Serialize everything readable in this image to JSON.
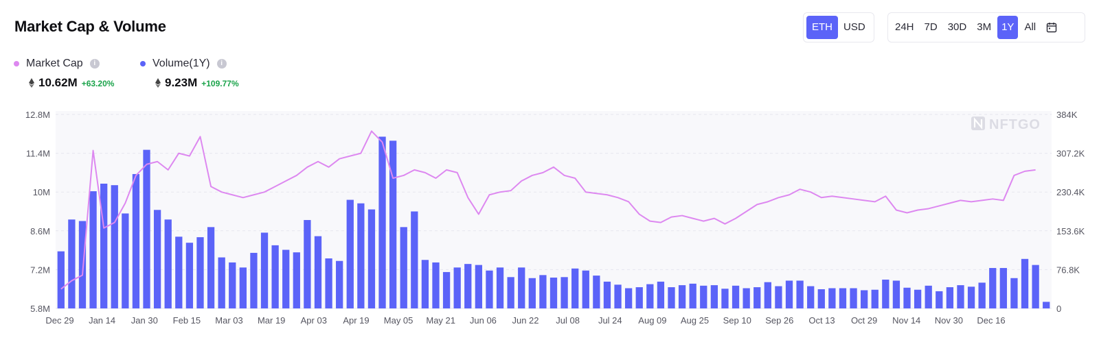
{
  "header": {
    "title": "Market Cap & Volume"
  },
  "currency_toggle": {
    "options": [
      "ETH",
      "USD"
    ],
    "selected": "ETH"
  },
  "range_toggle": {
    "options": [
      "24H",
      "7D",
      "30D",
      "3M",
      "1Y",
      "All"
    ],
    "selected": "1Y",
    "calendar_icon": "calendar-icon"
  },
  "legend": {
    "market_cap": {
      "label": "Market Cap",
      "value": "10.62M",
      "change": "+63.20%",
      "color": "#dd88f0"
    },
    "volume": {
      "label": "Volume(1Y)",
      "value": "9.23M",
      "change": "+109.77%",
      "color": "#5b63f8"
    }
  },
  "watermark": "NFTGO",
  "chart_data": {
    "type": "bar+line",
    "x_tick_labels": [
      "Dec 29",
      "Jan 14",
      "Jan 30",
      "Feb 15",
      "Mar 03",
      "Mar 19",
      "Apr 03",
      "Apr 19",
      "May 05",
      "May 21",
      "Jun 06",
      "Jun 22",
      "Jul 08",
      "Jul 24",
      "Aug 09",
      "Aug 25",
      "Sep 10",
      "Sep 26",
      "Oct 13",
      "Oct 29",
      "Nov 14",
      "Nov 30",
      "Dec 16"
    ],
    "y_left": {
      "ticks": [
        "5.8M",
        "7.2M",
        "8.6M",
        "10M",
        "11.4M",
        "12.8M"
      ],
      "range": [
        5800000,
        12800000
      ]
    },
    "y_right": {
      "ticks": [
        "0",
        "76.8K",
        "153.6K",
        "230.4K",
        "307.2K",
        "384K"
      ],
      "range": [
        0,
        384000
      ]
    },
    "grid": "horizontal",
    "series": [
      {
        "name": "Market Cap",
        "kind": "line",
        "axis": "left",
        "values": [
          6.5,
          6.8,
          7.0,
          11.5,
          8.7,
          8.9,
          9.6,
          10.6,
          11.0,
          11.1,
          10.8,
          11.4,
          11.3,
          12.0,
          10.2,
          10.0,
          9.9,
          9.8,
          9.9,
          10.0,
          10.2,
          10.4,
          10.6,
          10.9,
          11.1,
          10.9,
          11.2,
          11.3,
          11.4,
          12.2,
          11.8,
          10.5,
          10.6,
          10.8,
          10.7,
          10.5,
          10.8,
          10.7,
          9.8,
          9.2,
          9.9,
          10.0,
          10.05,
          10.4,
          10.6,
          10.7,
          10.9,
          10.6,
          10.5,
          10.0,
          9.95,
          9.9,
          9.8,
          9.65,
          9.2,
          8.95,
          8.9,
          9.1,
          9.15,
          9.05,
          8.95,
          9.05,
          8.85,
          9.05,
          9.3,
          9.55,
          9.65,
          9.8,
          9.9,
          10.1,
          10.0,
          9.8,
          9.85,
          9.8,
          9.75,
          9.7,
          9.65,
          9.85,
          9.35,
          9.25,
          9.35,
          9.4,
          9.5,
          9.6,
          9.7,
          9.65,
          9.7,
          9.75,
          9.7,
          10.6,
          10.75,
          10.8
        ],
        "value_units": "millions"
      },
      {
        "name": "Volume(1Y)",
        "kind": "bar",
        "axis": "right",
        "values": [
          113,
          176,
          173,
          232,
          247,
          244,
          188,
          266,
          314,
          195,
          176,
          142,
          130,
          141,
          161,
          101,
          91,
          81,
          110,
          150,
          125,
          116,
          111,
          175,
          143,
          99,
          94,
          215,
          208,
          196,
          340,
          332,
          161,
          192,
          96,
          91,
          72,
          81,
          88,
          86,
          75,
          81,
          62,
          81,
          60,
          66,
          61,
          62,
          79,
          75,
          65,
          53,
          47,
          40,
          42,
          48,
          53,
          42,
          46,
          49,
          45,
          46,
          39,
          45,
          40,
          42,
          52,
          44,
          55,
          55,
          44,
          38,
          40,
          40,
          40,
          36,
          37,
          57,
          55,
          41,
          37,
          45,
          34,
          42,
          46,
          43,
          51,
          80,
          80,
          60,
          98,
          86,
          13
        ],
        "value_units": "thousands"
      }
    ]
  }
}
